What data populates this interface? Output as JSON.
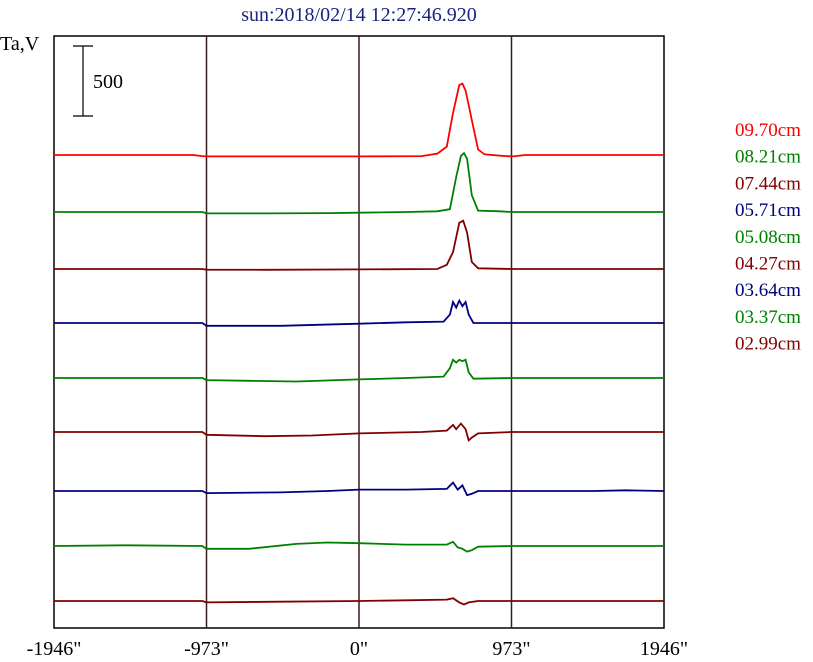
{
  "chart_data": {
    "type": "line",
    "title": "sun:2018/02/14 12:27:46.920",
    "ylabel": "Ta,V",
    "scale_bar_label": "500",
    "scale_bar_value": 500,
    "xlim": [
      -1946,
      1946
    ],
    "x_ticks": [
      -1946,
      -973,
      0,
      973,
      1946
    ],
    "x_tick_labels": [
      "-1946\"",
      "-973\"",
      "0\"",
      "973\"",
      "1946\""
    ],
    "vertical_lines_at": [
      -973,
      0,
      973
    ],
    "grid": false,
    "legend_placement": "right",
    "series": [
      {
        "name": "09.70cm",
        "color": "#ff0000",
        "baseline_points": [
          [
            -1946,
            0
          ],
          [
            -1060,
            0
          ],
          [
            -1000,
            -8
          ],
          [
            -973,
            -10
          ],
          [
            -500,
            -10
          ],
          [
            0,
            -10
          ],
          [
            400,
            -8
          ],
          [
            500,
            10
          ],
          [
            560,
            60
          ],
          [
            600,
            300
          ],
          [
            640,
            500
          ],
          [
            660,
            510
          ],
          [
            680,
            460
          ],
          [
            720,
            250
          ],
          [
            760,
            40
          ],
          [
            800,
            5
          ],
          [
            900,
            -5
          ],
          [
            973,
            -10
          ],
          [
            1000,
            -8
          ],
          [
            1060,
            0
          ],
          [
            1946,
            0
          ]
        ]
      },
      {
        "name": "08.21cm",
        "color": "#008000",
        "baseline_points": [
          [
            -1946,
            0
          ],
          [
            -1000,
            0
          ],
          [
            -973,
            -10
          ],
          [
            -600,
            -10
          ],
          [
            -200,
            -8
          ],
          [
            0,
            -5
          ],
          [
            300,
            0
          ],
          [
            500,
            5
          ],
          [
            580,
            20
          ],
          [
            620,
            250
          ],
          [
            650,
            400
          ],
          [
            670,
            420
          ],
          [
            690,
            380
          ],
          [
            720,
            120
          ],
          [
            760,
            10
          ],
          [
            900,
            5
          ],
          [
            973,
            0
          ],
          [
            1946,
            0
          ]
        ]
      },
      {
        "name": "07.44cm",
        "color": "#800000",
        "baseline_points": [
          [
            -1946,
            0
          ],
          [
            -1000,
            0
          ],
          [
            -973,
            -5
          ],
          [
            -600,
            -6
          ],
          [
            0,
            -3
          ],
          [
            500,
            0
          ],
          [
            560,
            30
          ],
          [
            600,
            120
          ],
          [
            640,
            330
          ],
          [
            665,
            345
          ],
          [
            690,
            260
          ],
          [
            720,
            50
          ],
          [
            760,
            5
          ],
          [
            973,
            0
          ],
          [
            1946,
            0
          ]
        ]
      },
      {
        "name": "05.71cm",
        "color": "#000080",
        "baseline_points": [
          [
            -1946,
            0
          ],
          [
            -1000,
            0
          ],
          [
            -973,
            -20
          ],
          [
            -500,
            -20
          ],
          [
            0,
            -5
          ],
          [
            300,
            5
          ],
          [
            540,
            10
          ],
          [
            580,
            60
          ],
          [
            600,
            150
          ],
          [
            620,
            110
          ],
          [
            640,
            160
          ],
          [
            660,
            120
          ],
          [
            680,
            150
          ],
          [
            700,
            60
          ],
          [
            730,
            0
          ],
          [
            973,
            0
          ],
          [
            1946,
            0
          ]
        ]
      },
      {
        "name": "05.08cm",
        "color": "#008000",
        "baseline_points": [
          [
            -1946,
            0
          ],
          [
            -1000,
            0
          ],
          [
            -973,
            -15
          ],
          [
            -700,
            -20
          ],
          [
            -400,
            -25
          ],
          [
            0,
            -10
          ],
          [
            300,
            0
          ],
          [
            540,
            10
          ],
          [
            580,
            70
          ],
          [
            600,
            130
          ],
          [
            620,
            110
          ],
          [
            640,
            130
          ],
          [
            660,
            120
          ],
          [
            680,
            130
          ],
          [
            700,
            40
          ],
          [
            730,
            -5
          ],
          [
            973,
            0
          ],
          [
            1946,
            0
          ]
        ]
      },
      {
        "name": "04.27cm",
        "color": "#800000",
        "baseline_points": [
          [
            -1946,
            0
          ],
          [
            -1000,
            0
          ],
          [
            -973,
            -20
          ],
          [
            -600,
            -30
          ],
          [
            -300,
            -25
          ],
          [
            0,
            -10
          ],
          [
            400,
            0
          ],
          [
            560,
            10
          ],
          [
            600,
            50
          ],
          [
            620,
            20
          ],
          [
            650,
            60
          ],
          [
            680,
            20
          ],
          [
            700,
            -60
          ],
          [
            720,
            -40
          ],
          [
            760,
            -10
          ],
          [
            973,
            0
          ],
          [
            1946,
            0
          ]
        ]
      },
      {
        "name": "03.64cm",
        "color": "#000080",
        "baseline_points": [
          [
            -1946,
            0
          ],
          [
            -1000,
            0
          ],
          [
            -973,
            -15
          ],
          [
            -500,
            -10
          ],
          [
            -200,
            0
          ],
          [
            0,
            10
          ],
          [
            300,
            10
          ],
          [
            560,
            15
          ],
          [
            600,
            60
          ],
          [
            630,
            10
          ],
          [
            660,
            40
          ],
          [
            690,
            -30
          ],
          [
            720,
            -20
          ],
          [
            760,
            0
          ],
          [
            973,
            0
          ],
          [
            1500,
            0
          ],
          [
            1700,
            5
          ],
          [
            1946,
            0
          ]
        ]
      },
      {
        "name": "03.37cm",
        "color": "#008000",
        "baseline_points": [
          [
            -1946,
            0
          ],
          [
            -1500,
            5
          ],
          [
            -1000,
            0
          ],
          [
            -973,
            -20
          ],
          [
            -700,
            -20
          ],
          [
            -400,
            15
          ],
          [
            -200,
            25
          ],
          [
            0,
            20
          ],
          [
            300,
            10
          ],
          [
            560,
            10
          ],
          [
            600,
            30
          ],
          [
            630,
            -10
          ],
          [
            660,
            -20
          ],
          [
            690,
            -40
          ],
          [
            720,
            -30
          ],
          [
            760,
            -5
          ],
          [
            973,
            0
          ],
          [
            1946,
            0
          ]
        ]
      },
      {
        "name": "02.99cm",
        "color": "#800000",
        "baseline_points": [
          [
            -1946,
            0
          ],
          [
            -1000,
            0
          ],
          [
            -973,
            -10
          ],
          [
            -500,
            -5
          ],
          [
            0,
            0
          ],
          [
            300,
            5
          ],
          [
            560,
            10
          ],
          [
            600,
            20
          ],
          [
            640,
            -10
          ],
          [
            670,
            -25
          ],
          [
            700,
            -10
          ],
          [
            760,
            0
          ],
          [
            973,
            0
          ],
          [
            1946,
            0
          ]
        ]
      }
    ]
  }
}
